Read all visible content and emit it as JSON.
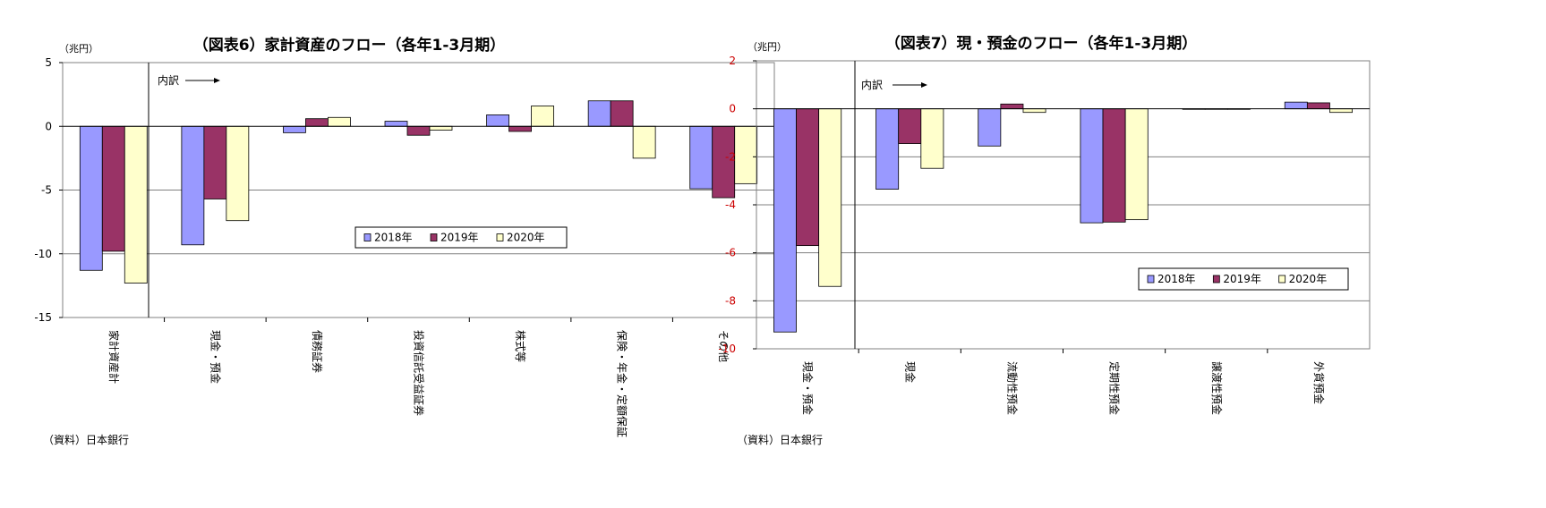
{
  "chart_data": [
    {
      "type": "bar",
      "title": "（図表6）家計資産のフロー（各年1-3月期）",
      "unit_label": "（兆円）",
      "source": "（資料）日本銀行",
      "annotation": "内訳",
      "categories": [
        "家計資産計",
        "現金・預金",
        "債務証券",
        "投資信託受益証券",
        "株式等",
        "保険・年金・定額保証",
        "その他"
      ],
      "series": [
        {
          "name": "2018年",
          "values": [
            -11.3,
            -9.3,
            -0.5,
            0.4,
            0.9,
            2.0,
            -4.9
          ]
        },
        {
          "name": "2019年",
          "values": [
            -9.8,
            -5.7,
            0.6,
            -0.7,
            -0.4,
            2.0,
            -5.6
          ]
        },
        {
          "name": "2020年",
          "values": [
            -12.3,
            -7.4,
            0.7,
            -0.3,
            1.6,
            -2.5,
            -4.5
          ]
        }
      ],
      "ylim": [
        -15,
        5
      ],
      "yticks": [
        5,
        0,
        -5,
        -10,
        -15
      ],
      "tick_color": "#000000",
      "grid": true,
      "legend_position": "bottom-right",
      "colors": {
        "2018年": "#9999ff",
        "2019年": "#993366",
        "2020年": "#ffffcc",
        "grid": "#808080"
      }
    },
    {
      "type": "bar",
      "title": "（図表7）現・預金のフロー（各年1-3月期）",
      "unit_label": "（兆円）",
      "source": "（資料）日本銀行",
      "annotation": "内訳",
      "categories": [
        "現金・預金",
        "現金",
        "流動性預金",
        "定期性預金",
        "譲渡性預金",
        "外貨預金"
      ],
      "series": [
        {
          "name": "2018年",
          "values": [
            -9.3,
            -3.35,
            -1.55,
            -4.75,
            -0.02,
            0.28
          ]
        },
        {
          "name": "2019年",
          "values": [
            -5.7,
            -1.45,
            0.2,
            -4.72,
            -0.02,
            0.25
          ]
        },
        {
          "name": "2020年",
          "values": [
            -7.4,
            -2.48,
            -0.15,
            -4.62,
            -0.02,
            -0.15
          ]
        }
      ],
      "ylim": [
        -10,
        2
      ],
      "yticks": [
        2,
        0,
        -2,
        -4,
        -6,
        -8,
        -10
      ],
      "tick_color": "#cc0000",
      "grid": true,
      "legend_position": "bottom-right",
      "colors": {
        "2018年": "#9999ff",
        "2019年": "#993366",
        "2020年": "#ffffcc",
        "grid": "#808080"
      }
    }
  ]
}
